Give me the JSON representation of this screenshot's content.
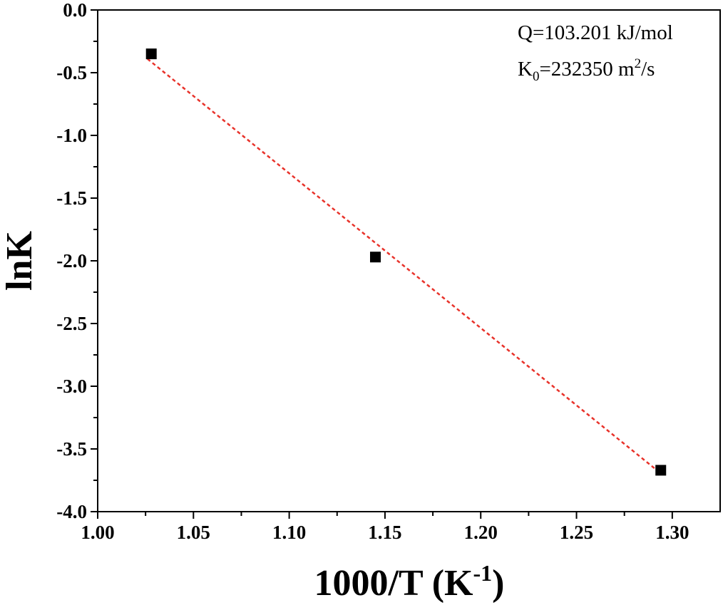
{
  "chart_data": {
    "type": "scatter",
    "title": "",
    "xlabel": {
      "main": "1000/T (K",
      "sup": "-1",
      "end": ")"
    },
    "ylabel": "lnK",
    "xlim": [
      1.0,
      1.325
    ],
    "ylim": [
      -4.0,
      0.0
    ],
    "xticks": [
      1.0,
      1.05,
      1.1,
      1.15,
      1.2,
      1.25,
      1.3
    ],
    "xtick_labels": [
      "1.00",
      "1.05",
      "1.10",
      "1.15",
      "1.20",
      "1.25",
      "1.30"
    ],
    "yticks": [
      0.0,
      -0.5,
      -1.0,
      -1.5,
      -2.0,
      -2.5,
      -3.0,
      -3.5,
      -4.0
    ],
    "ytick_labels": [
      "0.0",
      "-0.5",
      "-1.0",
      "-1.5",
      "-2.0",
      "-2.5",
      "-3.0",
      "-3.5",
      "-4.0"
    ],
    "grid": false,
    "series": [
      {
        "marker": "square",
        "color": "#000000",
        "x": [
          1.028,
          1.145,
          1.294
        ],
        "y": [
          -0.35,
          -1.97,
          -3.67
        ]
      }
    ],
    "fit_line": {
      "style": "dashed",
      "color": "#e8322a",
      "x": [
        1.026,
        1.292
      ],
      "y": [
        -0.39,
        -3.67
      ]
    },
    "annotations": {
      "line1": "Q=103.201 kJ/mol",
      "line2": {
        "pre": "K",
        "sub": "0",
        "mid": "=232350 m",
        "sup": "2",
        "post": "/s"
      }
    }
  }
}
